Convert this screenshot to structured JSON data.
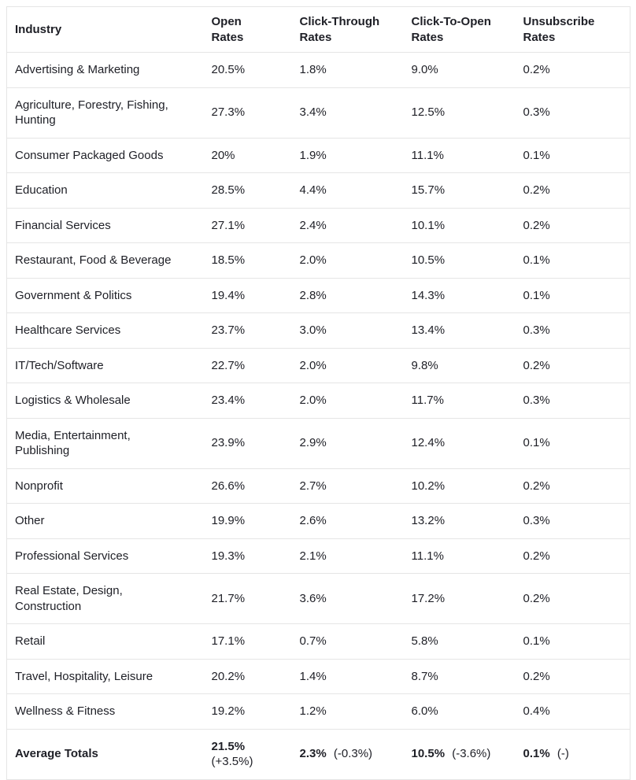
{
  "chart_data": {
    "type": "table",
    "title": "",
    "columns": [
      {
        "label": "Industry"
      },
      {
        "label": "Open\nRates"
      },
      {
        "label": "Click-Through\nRates"
      },
      {
        "label": "Click-To-Open\nRates"
      },
      {
        "label": "Unsubscribe\nRates"
      }
    ],
    "rows": [
      [
        "Advertising & Marketing",
        "20.5%",
        "1.8%",
        "9.0%",
        "0.2%"
      ],
      [
        "Agriculture, Forestry, Fishing, Hunting",
        "27.3%",
        "3.4%",
        "12.5%",
        "0.3%"
      ],
      [
        "Consumer Packaged Goods",
        "20%",
        "1.9%",
        "11.1%",
        "0.1%"
      ],
      [
        "Education",
        "28.5%",
        "4.4%",
        "15.7%",
        "0.2%"
      ],
      [
        "Financial Services",
        "27.1%",
        "2.4%",
        "10.1%",
        "0.2%"
      ],
      [
        "Restaurant, Food & Beverage",
        "18.5%",
        "2.0%",
        "10.5%",
        "0.1%"
      ],
      [
        "Government & Politics",
        "19.4%",
        "2.8%",
        "14.3%",
        "0.1%"
      ],
      [
        "Healthcare Services",
        "23.7%",
        "3.0%",
        "13.4%",
        "0.3%"
      ],
      [
        "IT/Tech/Software",
        "22.7%",
        "2.0%",
        "9.8%",
        "0.2%"
      ],
      [
        "Logistics & Wholesale",
        "23.4%",
        "2.0%",
        "11.7%",
        "0.3%"
      ],
      [
        "Media, Entertainment, Publishing",
        "23.9%",
        "2.9%",
        "12.4%",
        "0.1%"
      ],
      [
        "Nonprofit",
        "26.6%",
        "2.7%",
        "10.2%",
        "0.2%"
      ],
      [
        "Other",
        "19.9%",
        "2.6%",
        "13.2%",
        "0.3%"
      ],
      [
        "Professional Services",
        "19.3%",
        "2.1%",
        "11.1%",
        "0.2%"
      ],
      [
        "Real Estate, Design, Construction",
        "21.7%",
        "3.6%",
        "17.2%",
        "0.2%"
      ],
      [
        "Retail",
        "17.1%",
        "0.7%",
        "5.8%",
        "0.1%"
      ],
      [
        "Travel, Hospitality, Leisure",
        "20.2%",
        "1.4%",
        "8.7%",
        "0.2%"
      ],
      [
        "Wellness & Fitness",
        "19.2%",
        "1.2%",
        "6.0%",
        "0.4%"
      ]
    ],
    "footer_row": {
      "label": "Average Totals",
      "cells": [
        {
          "value": "21.5%",
          "delta": "(+3.5%)"
        },
        {
          "value": "2.3%",
          "delta": "(-0.3%)"
        },
        {
          "value": "10.5%",
          "delta": "(-3.6%)"
        },
        {
          "value": "0.1%",
          "delta": "(-)"
        }
      ]
    },
    "layout": {
      "grid": "horizontal row dividers only",
      "header_position": "top"
    }
  },
  "colors": {
    "text": "#1e1f26",
    "border": "#e5e5e5",
    "background": "#ffffff"
  }
}
